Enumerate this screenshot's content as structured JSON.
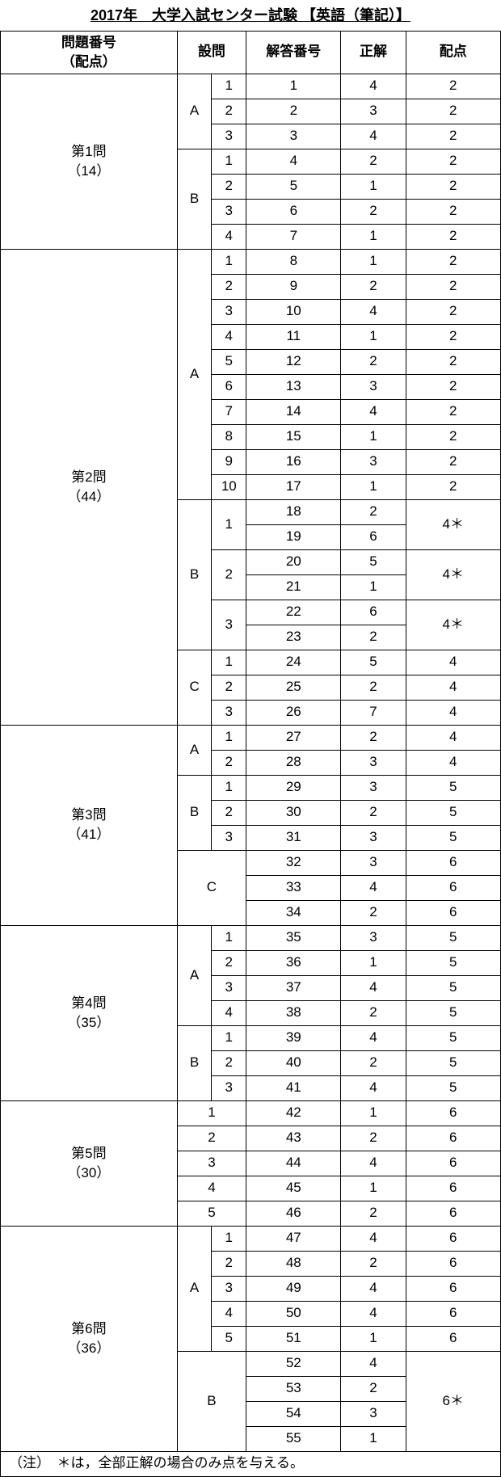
{
  "title": "2017年　大学入試センター試験 【英語（筆記）】",
  "headers": {
    "q_points": "問題番号\n（配点）",
    "section": "設問",
    "ans_no": "解答番号",
    "correct": "正解",
    "points": "配点"
  },
  "note": "（注）　＊は，全部正解の場合のみ点を与える。",
  "q1": {
    "label": "第1問\n（14）",
    "A": {
      "rows": [
        {
          "n": "1",
          "a": "1",
          "c": "4",
          "p": "2"
        },
        {
          "n": "2",
          "a": "2",
          "c": "3",
          "p": "2"
        },
        {
          "n": "3",
          "a": "3",
          "c": "4",
          "p": "2"
        }
      ]
    },
    "B": {
      "rows": [
        {
          "n": "1",
          "a": "4",
          "c": "2",
          "p": "2"
        },
        {
          "n": "2",
          "a": "5",
          "c": "1",
          "p": "2"
        },
        {
          "n": "3",
          "a": "6",
          "c": "2",
          "p": "2"
        },
        {
          "n": "4",
          "a": "7",
          "c": "1",
          "p": "2"
        }
      ]
    }
  },
  "q2": {
    "label": "第2問\n（44）",
    "A": {
      "rows": [
        {
          "n": "1",
          "a": "8",
          "c": "1",
          "p": "2"
        },
        {
          "n": "2",
          "a": "9",
          "c": "2",
          "p": "2"
        },
        {
          "n": "3",
          "a": "10",
          "c": "4",
          "p": "2"
        },
        {
          "n": "4",
          "a": "11",
          "c": "1",
          "p": "2"
        },
        {
          "n": "5",
          "a": "12",
          "c": "2",
          "p": "2"
        },
        {
          "n": "6",
          "a": "13",
          "c": "3",
          "p": "2"
        },
        {
          "n": "7",
          "a": "14",
          "c": "4",
          "p": "2"
        },
        {
          "n": "8",
          "a": "15",
          "c": "1",
          "p": "2"
        },
        {
          "n": "9",
          "a": "16",
          "c": "3",
          "p": "2"
        },
        {
          "n": "10",
          "a": "17",
          "c": "1",
          "p": "2"
        }
      ]
    },
    "B": {
      "g1": {
        "n": "1",
        "rows": [
          {
            "a": "18",
            "c": "2"
          },
          {
            "a": "19",
            "c": "6"
          }
        ],
        "p": "4＊"
      },
      "g2": {
        "n": "2",
        "rows": [
          {
            "a": "20",
            "c": "5"
          },
          {
            "a": "21",
            "c": "1"
          }
        ],
        "p": "4＊"
      },
      "g3": {
        "n": "3",
        "rows": [
          {
            "a": "22",
            "c": "6"
          },
          {
            "a": "23",
            "c": "2"
          }
        ],
        "p": "4＊"
      }
    },
    "C": {
      "rows": [
        {
          "n": "1",
          "a": "24",
          "c": "5",
          "p": "4"
        },
        {
          "n": "2",
          "a": "25",
          "c": "2",
          "p": "4"
        },
        {
          "n": "3",
          "a": "26",
          "c": "7",
          "p": "4"
        }
      ]
    }
  },
  "q3": {
    "label": "第3問\n（41）",
    "A": {
      "rows": [
        {
          "n": "1",
          "a": "27",
          "c": "2",
          "p": "4"
        },
        {
          "n": "2",
          "a": "28",
          "c": "3",
          "p": "4"
        }
      ]
    },
    "B": {
      "rows": [
        {
          "n": "1",
          "a": "29",
          "c": "3",
          "p": "5"
        },
        {
          "n": "2",
          "a": "30",
          "c": "2",
          "p": "5"
        },
        {
          "n": "3",
          "a": "31",
          "c": "3",
          "p": "5"
        }
      ]
    },
    "C": {
      "rows": [
        {
          "a": "32",
          "c": "3",
          "p": "6"
        },
        {
          "a": "33",
          "c": "4",
          "p": "6"
        },
        {
          "a": "34",
          "c": "2",
          "p": "6"
        }
      ]
    }
  },
  "q4": {
    "label": "第4問\n（35）",
    "A": {
      "rows": [
        {
          "n": "1",
          "a": "35",
          "c": "3",
          "p": "5"
        },
        {
          "n": "2",
          "a": "36",
          "c": "1",
          "p": "5"
        },
        {
          "n": "3",
          "a": "37",
          "c": "4",
          "p": "5"
        },
        {
          "n": "4",
          "a": "38",
          "c": "2",
          "p": "5"
        }
      ]
    },
    "B": {
      "rows": [
        {
          "n": "1",
          "a": "39",
          "c": "4",
          "p": "5"
        },
        {
          "n": "2",
          "a": "40",
          "c": "2",
          "p": "5"
        },
        {
          "n": "3",
          "a": "41",
          "c": "4",
          "p": "5"
        }
      ]
    }
  },
  "q5": {
    "label": "第5問\n（30）",
    "rows": [
      {
        "n": "1",
        "a": "42",
        "c": "1",
        "p": "6"
      },
      {
        "n": "2",
        "a": "43",
        "c": "2",
        "p": "6"
      },
      {
        "n": "3",
        "a": "44",
        "c": "4",
        "p": "6"
      },
      {
        "n": "4",
        "a": "45",
        "c": "1",
        "p": "6"
      },
      {
        "n": "5",
        "a": "46",
        "c": "2",
        "p": "6"
      }
    ]
  },
  "q6": {
    "label": "第6問\n（36）",
    "A": {
      "rows": [
        {
          "n": "1",
          "a": "47",
          "c": "4",
          "p": "6"
        },
        {
          "n": "2",
          "a": "48",
          "c": "2",
          "p": "6"
        },
        {
          "n": "3",
          "a": "49",
          "c": "4",
          "p": "6"
        },
        {
          "n": "4",
          "a": "50",
          "c": "4",
          "p": "6"
        },
        {
          "n": "5",
          "a": "51",
          "c": "1",
          "p": "6"
        }
      ]
    },
    "B": {
      "rows": [
        {
          "a": "52",
          "c": "4"
        },
        {
          "a": "53",
          "c": "2"
        },
        {
          "a": "54",
          "c": "3"
        },
        {
          "a": "55",
          "c": "1"
        }
      ],
      "p": "6＊"
    }
  }
}
